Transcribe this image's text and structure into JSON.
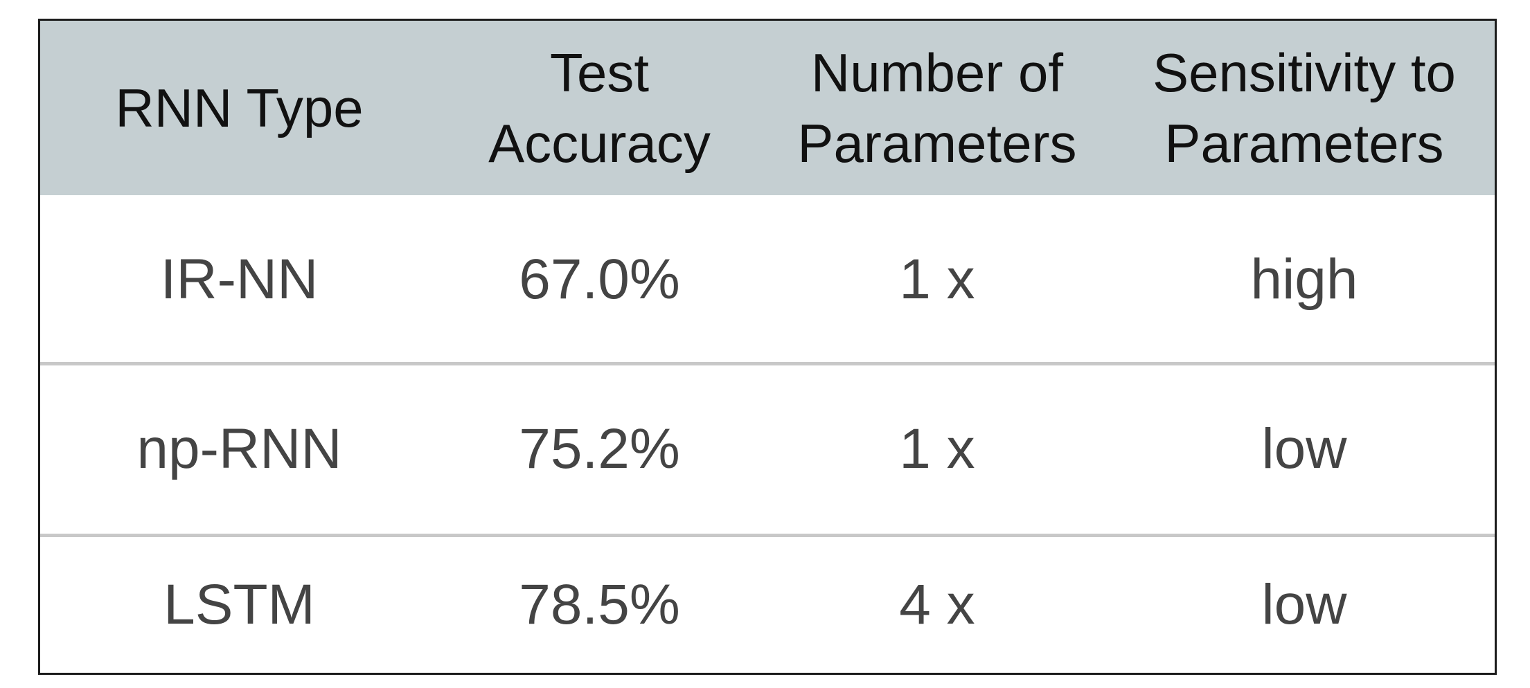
{
  "chart_data": {
    "type": "table",
    "columns": [
      "RNN Type",
      "Test\nAccuracy",
      "Number of\nParameters",
      "Sensitivity to\nParameters"
    ],
    "rows": [
      [
        "IR-NN",
        "67.0%",
        "1 x",
        "high"
      ],
      [
        "np-RNN",
        "75.2%",
        "1 x",
        "low"
      ],
      [
        "LSTM",
        "78.5%",
        "4 x",
        "low"
      ]
    ],
    "header_background": "#c5cfd2",
    "text_color": "#444444"
  }
}
